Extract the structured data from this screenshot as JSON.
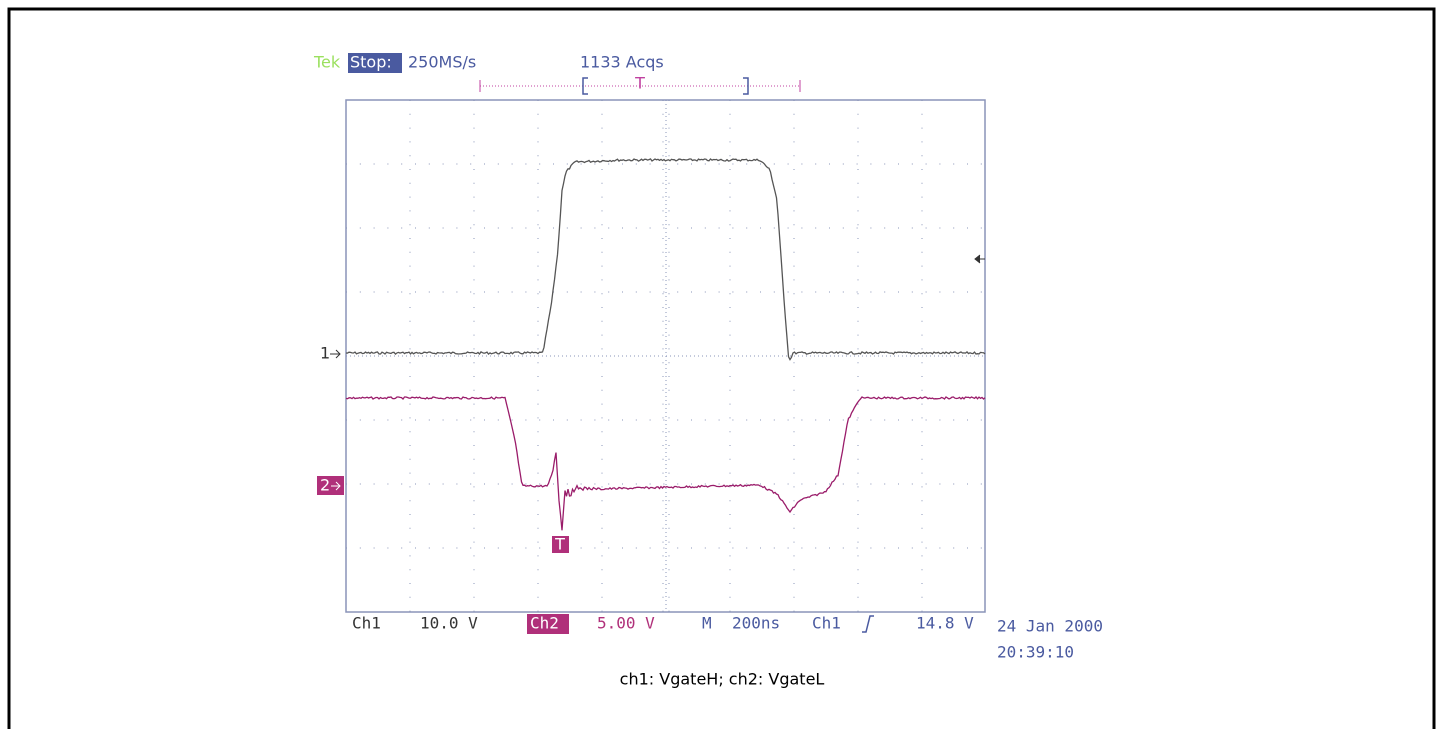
{
  "header": {
    "brand": "Tek",
    "status": "Stop:",
    "sample_rate": "250MS/s",
    "acquisitions": "1133 Acqs",
    "trigger_position_marker": "T"
  },
  "markers": {
    "ch1": "1",
    "ch2": "2",
    "trigger": "T"
  },
  "footer": {
    "ch1_label": "Ch1",
    "ch1_scale": "10.0 V",
    "ch2_label": "Ch2",
    "ch2_scale": "5.00 V",
    "timebase_label": "M",
    "timebase": "200ns",
    "trigger_source": "Ch1",
    "trigger_level": "14.8 V",
    "date": "24 Jan 2000",
    "time": "20:39:10"
  },
  "caption": "ch1: VgateH; ch2: VgateL"
}
